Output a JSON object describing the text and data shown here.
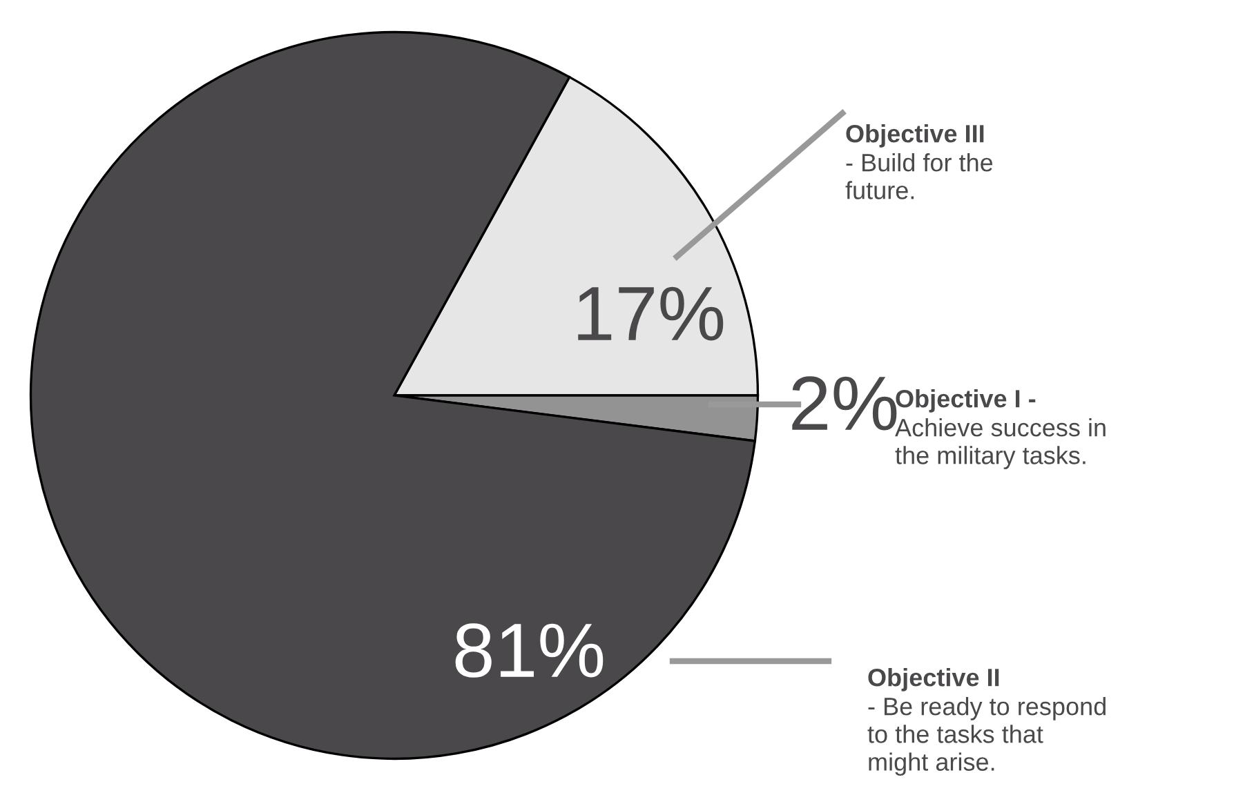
{
  "chart_data": {
    "type": "pie",
    "categories": [
      "Objective III",
      "Objective I -",
      "Objective II"
    ],
    "values": [
      17,
      2,
      81
    ],
    "colors": [
      "#e6e6e6",
      "#939393",
      "#4a484b"
    ],
    "value_labels": [
      "17%",
      "2%",
      "81%"
    ],
    "annotations": [
      "- Build for the\nfuture.",
      "Achieve success in\nthe military tasks.",
      "- Be ready to respond\nto the tasks that\nmight arise."
    ],
    "legend": false
  }
}
